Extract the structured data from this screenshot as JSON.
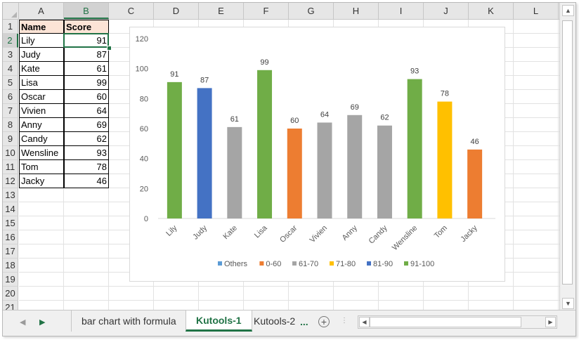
{
  "spreadsheet": {
    "columns": [
      "A",
      "B",
      "C",
      "D",
      "E",
      "F",
      "G",
      "H",
      "I",
      "J",
      "K",
      "L"
    ],
    "selected_column": "B",
    "rows": [
      "1",
      "2",
      "3",
      "4",
      "5",
      "6",
      "7",
      "8",
      "9",
      "10",
      "11",
      "12",
      "13",
      "14",
      "15",
      "16",
      "17",
      "18",
      "19",
      "20",
      "21"
    ],
    "selected_row": "2",
    "table": {
      "headers": [
        "Name",
        "Score"
      ],
      "records": [
        [
          "Lily",
          "91"
        ],
        [
          "Judy",
          "87"
        ],
        [
          "Kate",
          "61"
        ],
        [
          "Lisa",
          "99"
        ],
        [
          "Oscar",
          "60"
        ],
        [
          "Vivien",
          "64"
        ],
        [
          "Anny",
          "69"
        ],
        [
          "Candy",
          "62"
        ],
        [
          "Wensline",
          "93"
        ],
        [
          "Tom",
          "78"
        ],
        [
          "Jacky",
          "46"
        ]
      ]
    }
  },
  "colors": {
    "accent": "#217346",
    "header_fill": "#fce4d6",
    "Others": "#5b9bd5",
    "0-60": "#ed7d31",
    "61-70": "#a5a5a5",
    "71-80": "#ffc000",
    "81-90": "#4472c4",
    "91-100": "#70ad47"
  },
  "chart_data": {
    "type": "bar",
    "categories": [
      "Lily",
      "Judy",
      "Kate",
      "Lisa",
      "Oscar",
      "Vivien",
      "Anny",
      "Candy",
      "Wensline",
      "Tom",
      "Jacky"
    ],
    "values": [
      91,
      87,
      61,
      99,
      60,
      64,
      69,
      62,
      93,
      78,
      46
    ],
    "series_per_bar": [
      "91-100",
      "81-90",
      "61-70",
      "91-100",
      "0-60",
      "61-70",
      "61-70",
      "61-70",
      "91-100",
      "71-80",
      "0-60"
    ],
    "ylim": [
      0,
      120
    ],
    "yticks": [
      0,
      20,
      40,
      60,
      80,
      100,
      120
    ],
    "title": "",
    "xlabel": "",
    "ylabel": "",
    "grid": false,
    "legend_position": "bottom",
    "legend": [
      "Others",
      "0-60",
      "61-70",
      "71-80",
      "81-90",
      "91-100"
    ]
  },
  "tabs": {
    "sheets": [
      "bar chart with formula",
      "Kutools-1",
      "Kutools-2"
    ],
    "active": "Kutools-1",
    "more_label": "...",
    "add_label": "+"
  }
}
